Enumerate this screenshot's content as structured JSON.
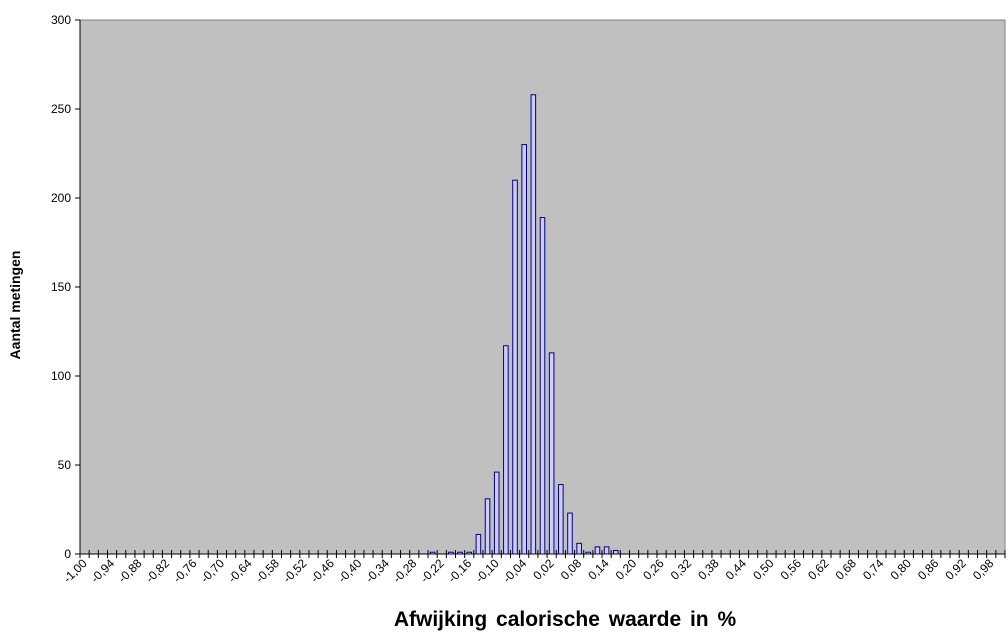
{
  "chart_data": {
    "type": "bar",
    "x_label": "Afwijking calorische waarde in %",
    "y_label": "Aantal metingen",
    "categories": [
      "-1,00",
      null,
      null,
      "-0,94",
      null,
      null,
      "-0,88",
      null,
      null,
      "-0,82",
      null,
      null,
      "-0,76",
      null,
      null,
      "-0,70",
      null,
      null,
      "-0,64",
      null,
      null,
      "-0,58",
      null,
      null,
      "-0,52",
      null,
      null,
      "-0,46",
      null,
      null,
      "-0,40",
      null,
      null,
      "-0,34",
      null,
      null,
      "-0,28",
      null,
      null,
      "-0,22",
      null,
      null,
      "-0,16",
      null,
      null,
      "-0,10",
      null,
      null,
      "-0,04",
      null,
      null,
      "0,02",
      null,
      null,
      "0,08",
      null,
      null,
      "0,14",
      null,
      null,
      "0,20",
      null,
      null,
      "0,26",
      null,
      null,
      "0,32",
      null,
      null,
      "0,38",
      null,
      null,
      "0,44",
      null,
      null,
      "0,50",
      null,
      null,
      "0,56",
      null,
      null,
      "0,62",
      null,
      null,
      "0,68",
      null,
      null,
      "0,74",
      null,
      null,
      "0,80",
      null,
      null,
      "0,86",
      null,
      null,
      "0,92",
      null,
      null,
      "0,98",
      null
    ],
    "values": [
      0,
      0,
      0,
      0,
      0,
      0,
      0,
      0,
      0,
      0,
      0,
      0,
      0,
      0,
      0,
      0,
      0,
      0,
      0,
      0,
      0,
      0,
      0,
      0,
      0,
      0,
      0,
      0,
      0,
      0,
      0,
      0,
      0,
      0,
      0,
      0,
      0,
      0,
      1,
      0,
      1,
      1,
      1,
      11,
      31,
      46,
      117,
      210,
      230,
      258,
      189,
      113,
      39,
      23,
      6,
      1,
      4,
      4,
      2,
      0,
      0,
      0,
      0,
      0,
      0,
      0,
      0,
      0,
      0,
      0,
      0,
      0,
      0,
      0,
      0,
      0,
      0,
      0,
      0,
      0,
      0,
      0,
      0,
      0,
      0,
      0,
      0,
      0,
      0,
      0,
      0,
      0,
      0,
      0,
      0,
      0,
      0,
      0,
      0,
      0,
      0
    ],
    "color": "#ccccff",
    "ylim": [
      0,
      300
    ],
    "yticks": [
      0,
      50,
      100,
      150,
      200,
      250,
      300
    ]
  }
}
